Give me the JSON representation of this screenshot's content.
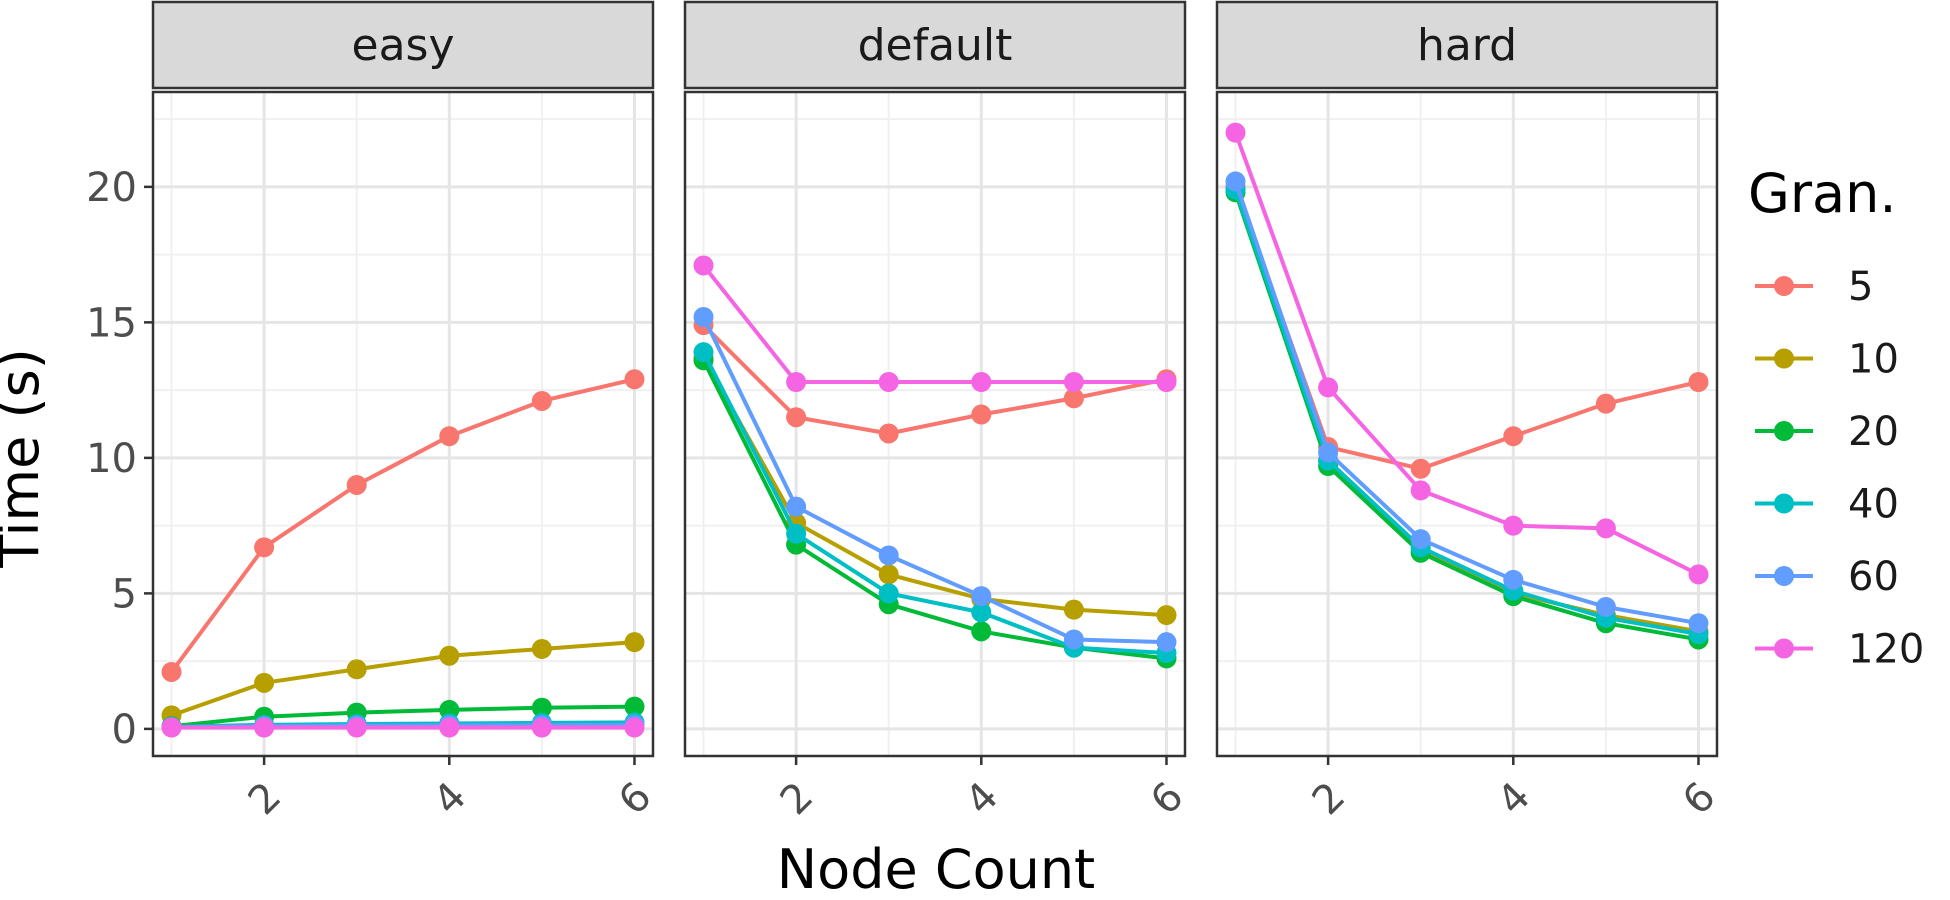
{
  "chart_data": {
    "type": "line",
    "facet_labels": [
      "easy",
      "default",
      "hard"
    ],
    "xlabel": "Node Count",
    "ylabel": "Time (s)",
    "x": [
      1,
      2,
      3,
      4,
      5,
      6
    ],
    "x_ticks": [
      2,
      4,
      6
    ],
    "y_ticks": [
      0,
      5,
      10,
      15,
      20
    ],
    "ylim": [
      -1,
      23.5
    ],
    "xlim": [
      0.8,
      6.2
    ],
    "legend": {
      "title": "Gran.",
      "position": "right"
    },
    "series_names": [
      "5",
      "10",
      "20",
      "40",
      "60",
      "120"
    ],
    "colors": [
      "#F8766D",
      "#B79F00",
      "#00BA38",
      "#00BFC4",
      "#619CFF",
      "#F564E3"
    ],
    "panels": [
      {
        "label": "easy",
        "series": [
          {
            "name": "5",
            "values": [
              2.1,
              6.7,
              9.0,
              10.8,
              12.1,
              12.9
            ]
          },
          {
            "name": "10",
            "values": [
              0.5,
              1.7,
              2.2,
              2.7,
              2.95,
              3.2
            ]
          },
          {
            "name": "20",
            "values": [
              0.1,
              0.45,
              0.6,
              0.7,
              0.78,
              0.82
            ]
          },
          {
            "name": "40",
            "values": [
              0.08,
              0.15,
              0.18,
              0.2,
              0.22,
              0.24
            ]
          },
          {
            "name": "60",
            "values": [
              0.06,
              0.1,
              0.12,
              0.13,
              0.14,
              0.15
            ]
          },
          {
            "name": "120",
            "values": [
              0.05,
              0.05,
              0.05,
              0.05,
              0.05,
              0.05
            ]
          }
        ]
      },
      {
        "label": "default",
        "series": [
          {
            "name": "5",
            "values": [
              14.9,
              11.5,
              10.9,
              11.6,
              12.2,
              12.9
            ]
          },
          {
            "name": "10",
            "values": [
              13.7,
              7.6,
              5.7,
              4.8,
              4.4,
              4.2
            ]
          },
          {
            "name": "20",
            "values": [
              13.6,
              6.8,
              4.6,
              3.6,
              3.0,
              2.6
            ]
          },
          {
            "name": "40",
            "values": [
              13.9,
              7.2,
              5.0,
              4.3,
              3.0,
              2.8
            ]
          },
          {
            "name": "60",
            "values": [
              15.2,
              8.2,
              6.4,
              4.9,
              3.3,
              3.2
            ]
          },
          {
            "name": "120",
            "values": [
              17.1,
              12.8,
              12.8,
              12.8,
              12.8,
              12.8
            ]
          }
        ]
      },
      {
        "label": "hard",
        "series": [
          {
            "name": "5",
            "values": [
              20.0,
              10.4,
              9.6,
              10.8,
              12.0,
              12.8
            ]
          },
          {
            "name": "10",
            "values": [
              19.9,
              9.9,
              6.6,
              5.0,
              4.2,
              3.6
            ]
          },
          {
            "name": "20",
            "values": [
              19.8,
              9.7,
              6.5,
              4.9,
              3.9,
              3.3
            ]
          },
          {
            "name": "40",
            "values": [
              19.9,
              9.9,
              6.7,
              5.1,
              4.1,
              3.5
            ]
          },
          {
            "name": "60",
            "values": [
              20.2,
              10.2,
              7.0,
              5.5,
              4.5,
              3.9
            ]
          },
          {
            "name": "120",
            "values": [
              22.0,
              12.6,
              8.8,
              7.5,
              7.4,
              5.7
            ]
          }
        ]
      }
    ],
    "grid": true
  }
}
